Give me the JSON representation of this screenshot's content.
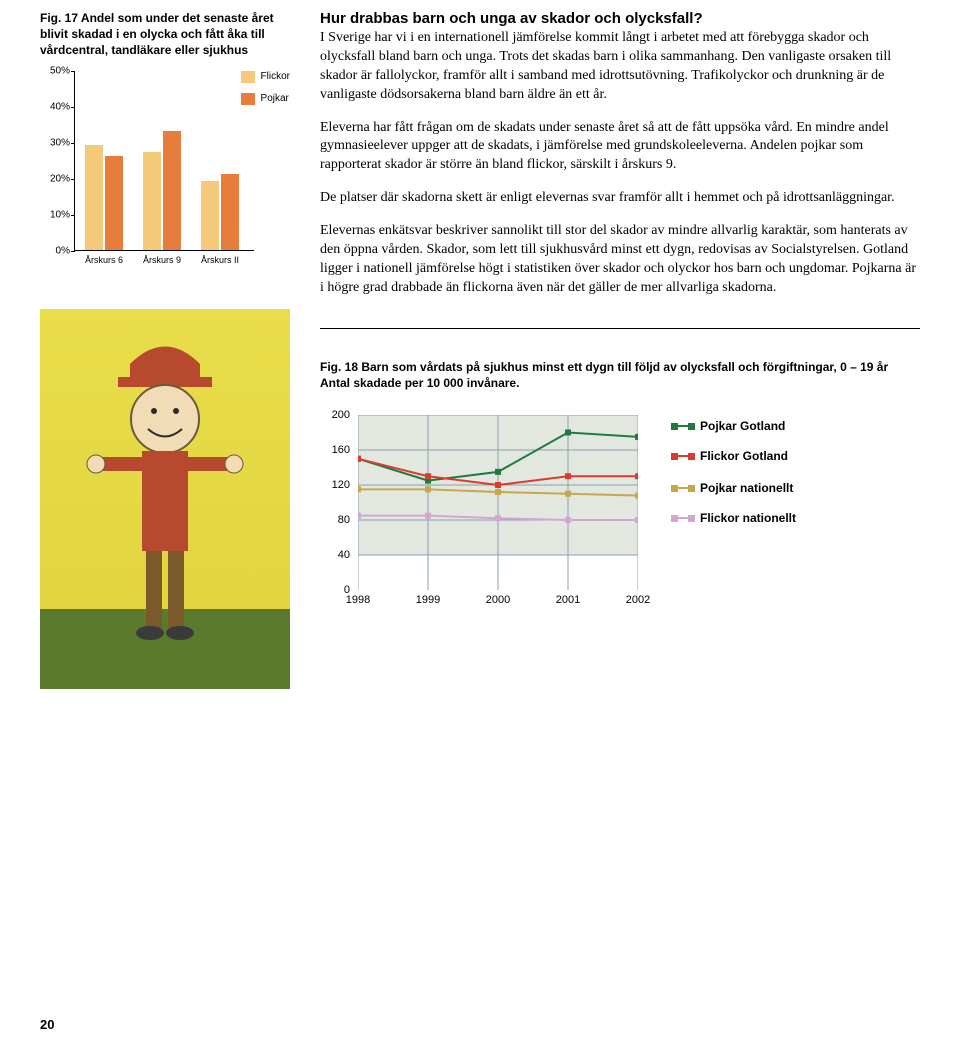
{
  "fig17": {
    "caption": "Fig. 17 Andel som under det senaste året blivit skadad i en olycka och fått åka till vårdcentral, tandläkare eller sjukhus",
    "type": "bar",
    "categories": [
      "Årskurs 6",
      "Årskurs 9",
      "Årskurs II"
    ],
    "series": [
      {
        "name": "Flickor",
        "color": "#f5c97a",
        "values": [
          29,
          27,
          19
        ]
      },
      {
        "name": "Pojkar",
        "color": "#e77d3c",
        "values": [
          26,
          33,
          21
        ]
      }
    ],
    "y_ticks": [
      "0%",
      "10%",
      "20%",
      "30%",
      "40%",
      "50%"
    ],
    "ymax": 50
  },
  "body": {
    "heading": "Hur drabbas barn och unga av skador och olycksfall?",
    "p1": "I Sverige har vi i en internationell jämförelse kommit långt i arbetet med att förebygga skador och olycksfall bland barn och unga. Trots det skadas barn i olika sammanhang. Den vanligaste orsaken till skador är fallolyckor, framför allt i samband med idrottsutövning. Trafikolyckor och drunkning är de vanligaste dödsorsakerna bland barn äldre än ett år.",
    "p2": "Eleverna har fått frågan om de skadats under senaste året så att de fått uppsöka vård. En mindre andel gymnasieelever uppger att de skadats, i jämförelse med grundskoleeleverna. Andelen pojkar som rapporterat skador är större än bland flickor, särskilt i årskurs 9.",
    "p3": "De platser där skadorna skett är enligt elevernas svar framför allt i hemmet och på idrottsanläggningar.",
    "p4": "Elevernas enkätsvar beskriver sannolikt till stor del skador av mindre allvarlig karaktär, som hanterats av den öppna vården. Skador, som lett till sjukhusvård minst ett dygn, redovisas av Socialstyrelsen. Gotland ligger i nationell jämförelse högt i statistiken över skador och olyckor hos barn och ungdomar. Pojkarna är i högre grad drabbade än flickorna även när det gäller de mer allvarliga skadorna."
  },
  "fig18": {
    "caption": "Fig. 18 Barn som vårdats på sjukhus minst ett dygn till följd av olycksfall och förgiftningar, 0 – 19 år Antal skadade per 10 000 invånare.",
    "type": "line",
    "x_labels": [
      "1998",
      "1999",
      "2000",
      "2001",
      "2002"
    ],
    "y_ticks": [
      "0",
      "40",
      "80",
      "120",
      "160",
      "200"
    ],
    "ymax": 200,
    "grid_color": "#8aa0b0",
    "plot_bg": "#e2e8df",
    "series": [
      {
        "name": "Pojkar Gotland",
        "color": "#1f7a3e",
        "values": [
          150,
          125,
          135,
          180,
          175
        ]
      },
      {
        "name": "Flickor Gotland",
        "color": "#d63d2e",
        "values": [
          150,
          130,
          120,
          130,
          130
        ]
      },
      {
        "name": "Pojkar nationellt",
        "color": "#c7a74a",
        "values": [
          115,
          115,
          112,
          110,
          108
        ]
      },
      {
        "name": "Flickor nationellt",
        "color": "#cfa7cf",
        "values": [
          85,
          85,
          82,
          80,
          80
        ]
      }
    ]
  },
  "page_number": "20"
}
